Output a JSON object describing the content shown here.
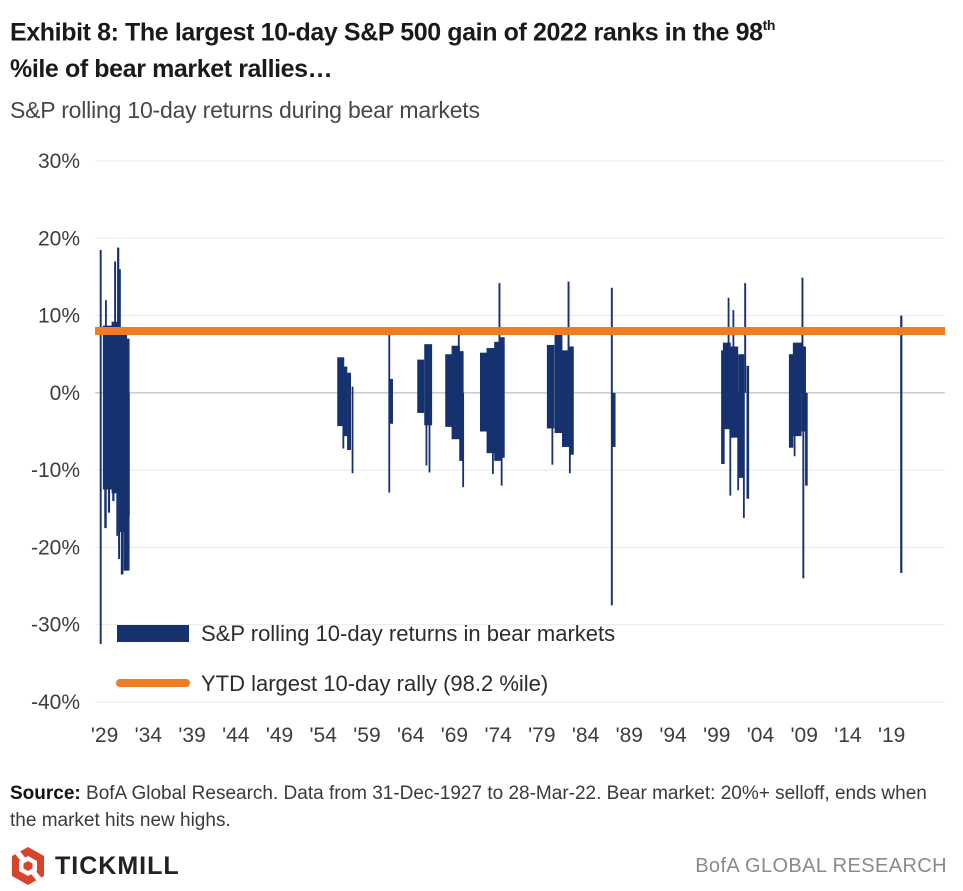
{
  "header": {
    "title_main": "Exhibit 8: The largest 10-day S&P 500 gain of 2022 ranks in the 98",
    "title_superscript": "th",
    "title_line2": "%ile of bear market rallies…",
    "subtitle": "S&P rolling 10-day returns during bear markets"
  },
  "chart_data": {
    "type": "bar",
    "title": "S&P rolling 10-day returns during bear markets",
    "xlabel": "",
    "ylabel": "",
    "unit": "%",
    "grid": true,
    "ylim": [
      -40,
      30
    ],
    "y_ticks": [
      30,
      20,
      10,
      0,
      -10,
      -20,
      -30,
      -40
    ],
    "y_tick_labels": [
      "30%",
      "20%",
      "10%",
      "0%",
      "-10%",
      "-20%",
      "-30%",
      "-40%"
    ],
    "x_range_years": [
      1927.9,
      2025.1
    ],
    "x_ticks": [
      {
        "year": 1929,
        "label": "'29"
      },
      {
        "year": 1934,
        "label": "'34"
      },
      {
        "year": 1939,
        "label": "'39"
      },
      {
        "year": 1944,
        "label": "'44"
      },
      {
        "year": 1949,
        "label": "'49"
      },
      {
        "year": 1954,
        "label": "'54"
      },
      {
        "year": 1959,
        "label": "'59"
      },
      {
        "year": 1964,
        "label": "'64"
      },
      {
        "year": 1969,
        "label": "'69"
      },
      {
        "year": 1974,
        "label": "'74"
      },
      {
        "year": 1979,
        "label": "'79"
      },
      {
        "year": 1984,
        "label": "'84"
      },
      {
        "year": 1989,
        "label": "'89"
      },
      {
        "year": 1994,
        "label": "'94"
      },
      {
        "year": 1999,
        "label": "'99"
      },
      {
        "year": 2004,
        "label": "'04"
      },
      {
        "year": 2009,
        "label": "'09"
      },
      {
        "year": 2014,
        "label": "'14"
      },
      {
        "year": 2019,
        "label": "'19"
      }
    ],
    "reference_line": {
      "label": "YTD largest 10-day rally (98.2 %ile)",
      "value": 8,
      "color": "#ee7c25"
    },
    "legend": [
      {
        "type": "bar",
        "label": "S&P rolling 10-day returns in bear markets",
        "color": "#15316e"
      },
      {
        "type": "line",
        "label": "YTD largest 10-day rally (98.2 %ile)",
        "color": "#ee7c25"
      }
    ],
    "bar_format": "[year, high_pct, low_pct, width_years]",
    "series": [
      {
        "name": "S&P rolling 10-day returns in bear markets",
        "color": "#15316e",
        "episodes": [
          {
            "name": "1929-1932",
            "bars": [
              [
                1928.55,
                18.5,
                -32.5,
                0.22
              ],
              [
                1929.35,
                8.7,
                -12.5,
                1.1
              ],
              [
                1930.3,
                9.2,
                -13.0,
                1.0
              ],
              [
                1931.15,
                8.2,
                -18.0,
                0.85
              ],
              [
                1931.6,
                7.0,
                -23.0,
                0.5
              ],
              [
                1929.15,
                12.0,
                0,
                0.2
              ],
              [
                1930.2,
                17.0,
                0,
                0.22
              ],
              [
                1930.55,
                18.8,
                0,
                0.25
              ],
              [
                1930.75,
                16.0,
                0,
                0.2
              ],
              [
                1929.1,
                0,
                -17.5,
                0.28
              ],
              [
                1929.5,
                0,
                -15.5,
                0.25
              ],
              [
                1930.0,
                0,
                -14.0,
                0.25
              ],
              [
                1930.45,
                0,
                -18.5,
                0.22
              ],
              [
                1930.65,
                0,
                -21.5,
                0.22
              ],
              [
                1931.0,
                0,
                -23.5,
                0.3
              ],
              [
                1931.4,
                0,
                -23.0,
                0.45
              ],
              [
                1931.75,
                0,
                -16.0,
                0.25
              ]
            ]
          },
          {
            "name": "1956-1957",
            "bars": [
              [
                1956.0,
                4.6,
                -4.3,
                0.8
              ],
              [
                1956.5,
                3.4,
                -5.6,
                0.5
              ],
              [
                1956.3,
                0,
                -7.2,
                0.18
              ],
              [
                1956.95,
                2.6,
                -7.4,
                0.45
              ],
              [
                1957.35,
                0.8,
                -10.4,
                0.2
              ]
            ]
          },
          {
            "name": "1961-1962",
            "bars": [
              [
                1961.55,
                7.8,
                -12.9,
                0.2
              ],
              [
                1961.75,
                1.8,
                -4.0,
                0.45
              ]
            ]
          },
          {
            "name": "1966",
            "bars": [
              [
                1965.15,
                4.3,
                -2.6,
                0.8
              ],
              [
                1966.0,
                6.3,
                -4.2,
                0.9
              ],
              [
                1965.8,
                0,
                -9.4,
                0.2
              ],
              [
                1966.15,
                0,
                -10.3,
                0.18
              ]
            ]
          },
          {
            "name": "1968-1970",
            "bars": [
              [
                1968.35,
                5.0,
                -4.4,
                0.8
              ],
              [
                1969.15,
                6.1,
                -6.0,
                0.95
              ],
              [
                1969.5,
                7.6,
                0,
                0.2
              ],
              [
                1969.8,
                5.4,
                -8.8,
                0.5
              ],
              [
                1970.0,
                0,
                -12.2,
                0.2
              ]
            ]
          },
          {
            "name": "1973-1974",
            "bars": [
              [
                1972.35,
                5.2,
                -5.0,
                0.85
              ],
              [
                1973.15,
                5.8,
                -7.8,
                0.95
              ],
              [
                1973.4,
                0,
                -10.5,
                0.2
              ],
              [
                1973.95,
                6.6,
                -8.8,
                0.8
              ],
              [
                1974.15,
                14.2,
                0,
                0.22
              ],
              [
                1974.5,
                7.2,
                -8.4,
                0.5
              ],
              [
                1974.4,
                0,
                -12.0,
                0.2
              ]
            ]
          },
          {
            "name": "1980-1982",
            "bars": [
              [
                1980.0,
                6.2,
                -4.6,
                0.85
              ],
              [
                1980.2,
                0,
                -9.3,
                0.2
              ],
              [
                1980.9,
                7.9,
                -5.2,
                0.9
              ],
              [
                1981.7,
                5.5,
                -7.0,
                0.8
              ],
              [
                1982.05,
                14.4,
                0,
                0.22
              ],
              [
                1982.2,
                0,
                -10.4,
                0.18
              ],
              [
                1982.4,
                6.0,
                -8.0,
                0.5
              ]
            ]
          },
          {
            "name": "1987",
            "bars": [
              [
                1987.0,
                13.6,
                -27.5,
                0.22
              ],
              [
                1987.2,
                0,
                -7.0,
                0.45
              ]
            ]
          },
          {
            "name": "2000-2002",
            "bars": [
              [
                1999.7,
                5.5,
                -9.2,
                0.4
              ],
              [
                2000.15,
                6.5,
                -4.7,
                0.9
              ],
              [
                2000.35,
                12.3,
                0,
                0.2
              ],
              [
                2000.55,
                0,
                -13.3,
                0.2
              ],
              [
                2000.9,
                10.7,
                0,
                0.18
              ],
              [
                2001.0,
                6.0,
                -5.8,
                0.9
              ],
              [
                2001.45,
                0,
                -12.6,
                0.18
              ],
              [
                2001.8,
                5.0,
                -11.0,
                0.7
              ],
              [
                2002.1,
                0,
                -16.2,
                0.2
              ],
              [
                2002.25,
                14.2,
                0,
                0.22
              ],
              [
                2002.55,
                3.5,
                -13.7,
                0.3
              ]
            ]
          },
          {
            "name": "2007-2009",
            "bars": [
              [
                2007.5,
                5.0,
                -7.1,
                0.5
              ],
              [
                2007.9,
                0,
                -8.2,
                0.2
              ],
              [
                2008.2,
                6.5,
                -5.6,
                1.0
              ],
              [
                2008.8,
                14.9,
                0,
                0.22
              ],
              [
                2008.95,
                6.0,
                -5.0,
                0.5
              ],
              [
                2008.9,
                0,
                -24.0,
                0.22
              ],
              [
                2009.25,
                0,
                -12.0,
                0.3
              ]
            ]
          },
          {
            "name": "2020",
            "bars": [
              [
                2020.1,
                10.0,
                -23.3,
                0.25
              ]
            ]
          }
        ]
      }
    ]
  },
  "source": {
    "label": "Source:",
    "text": " BofA Global Research. Data from 31-Dec-1927 to 28-Mar-22. Bear market: 20%+ selloff, ends when the market hits new highs."
  },
  "footer": {
    "brand": "TICKMILL",
    "brand_color": "#d6452b",
    "right_text": "BofA GLOBAL RESEARCH"
  }
}
